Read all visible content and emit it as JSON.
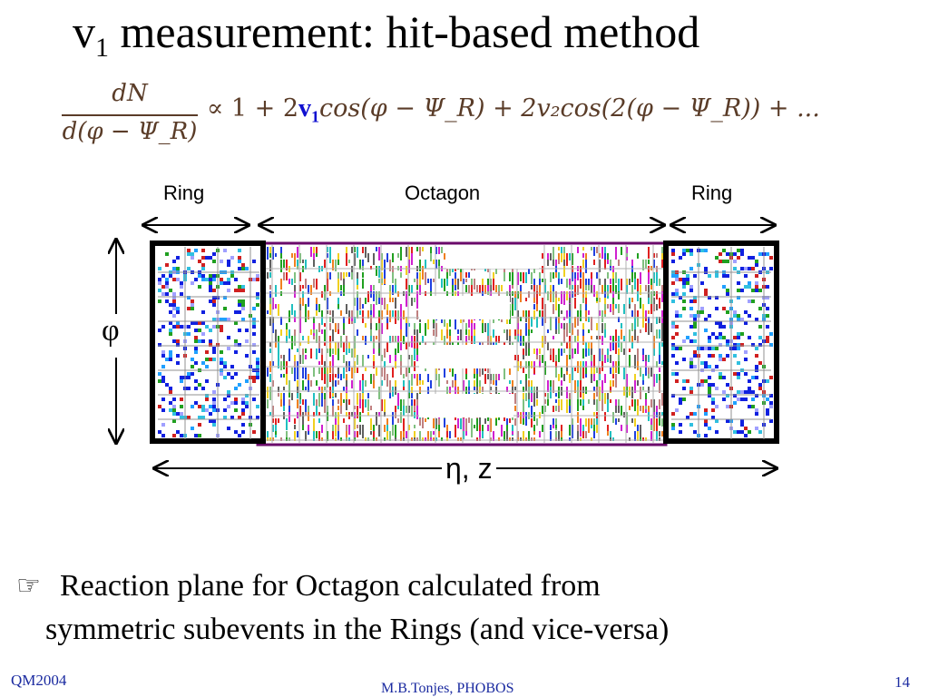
{
  "slide": {
    "title_main": "v",
    "title_sub": "1",
    "title_rest": " measurement: hit-based method",
    "formula": {
      "numerator": "dN",
      "denominator": "d(φ − Ψ_R)",
      "rhs_before": "∝ 1 + 2",
      "v1_label": "v",
      "v1_sub": "1",
      "rhs_after": "cos(φ − Ψ_R) + 2v₂cos(2(φ − Ψ_R)) + ..."
    },
    "diagram": {
      "ring_left_label": "Ring",
      "octagon_label": "Octagon",
      "ring_right_label": "Ring",
      "phi_label": "φ",
      "eta_label": "η, z"
    },
    "bullet": {
      "icon": "pointing-hand-icon",
      "line1": "Reaction plane for Octagon calculated from",
      "line2": "symmetric subevents in the Rings (and vice-versa)"
    },
    "footer": {
      "left": "QM2004",
      "center": "M.B.Tonjes, PHOBOS",
      "right": "14"
    },
    "colors": {
      "formula": "#5a3c28",
      "v1_highlight": "#1010d0",
      "footer": "#1a2aa0",
      "octagon_border": "#6a0a6a"
    }
  }
}
